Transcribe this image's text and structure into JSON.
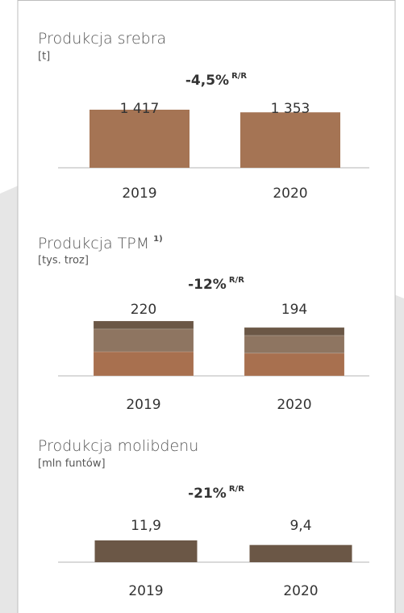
{
  "chart_data": [
    {
      "type": "bar",
      "title": "Produkcja srebra",
      "unit": "[t]",
      "change": "-4,5%",
      "change_suffix": "R/R",
      "categories": [
        "2019",
        "2020"
      ],
      "values": [
        1417,
        1353
      ],
      "value_labels": [
        "1 417",
        "1 353"
      ],
      "color": "#a57454"
    },
    {
      "type": "stacked_bar",
      "title": "Produkcja TPM",
      "title_note": "1)",
      "unit": "[tys. troz]",
      "change": "-12%",
      "change_suffix": "R/R",
      "categories": [
        "2019",
        "2020"
      ],
      "totals": [
        220,
        194
      ],
      "series": [
        {
          "color": "#a8704f",
          "values": [
            97,
            91
          ]
        },
        {
          "color": "#8e7561",
          "values": [
            91,
            71
          ]
        },
        {
          "color": "#6b5746",
          "values": [
            32,
            32
          ]
        }
      ]
    },
    {
      "type": "bar",
      "title": "Produkcja molibdenu",
      "unit": "[mln funtów]",
      "change": "-21%",
      "change_suffix": "R/R",
      "categories": [
        "2019",
        "2020"
      ],
      "values": [
        11.9,
        9.4
      ],
      "value_labels": [
        "11,9",
        "9,4"
      ],
      "color": "#6b5746"
    }
  ]
}
